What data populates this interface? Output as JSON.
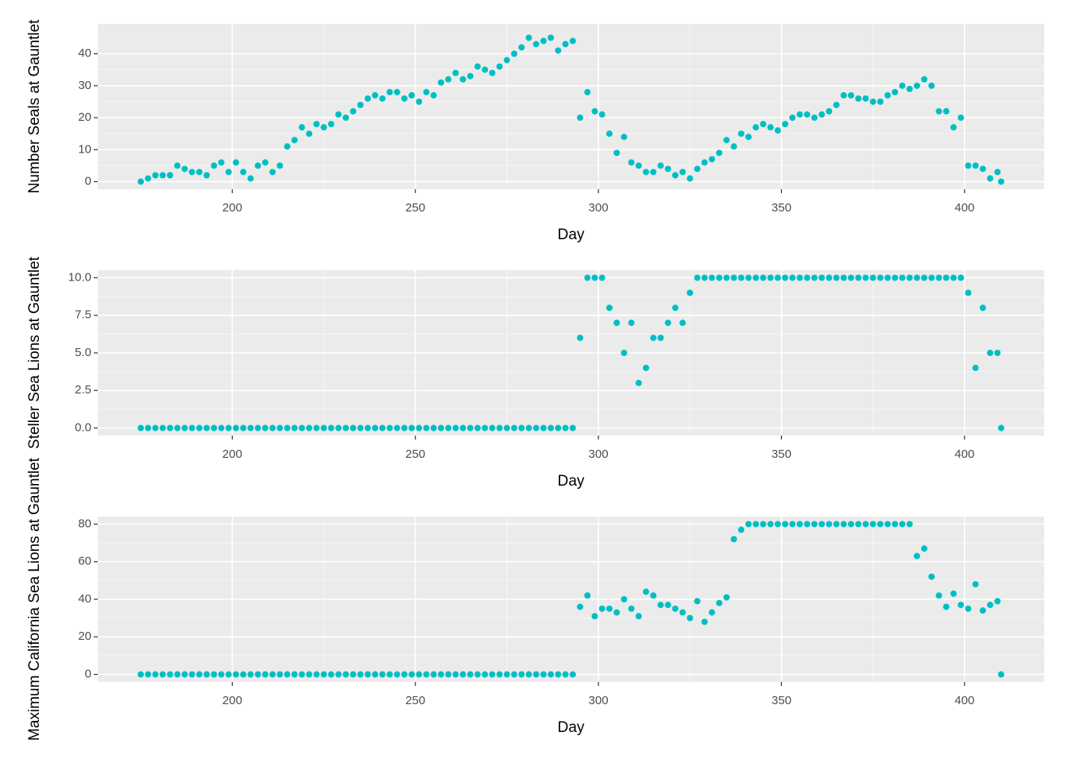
{
  "chart_data": [
    {
      "type": "scatter",
      "x_label": "Day",
      "y_label": "Number Seals at Gauntlet",
      "color": "#00bfc4",
      "grid": true,
      "xlim": [
        163.25,
        421.75
      ],
      "ylim": [
        -2.35,
        49.35
      ],
      "xticks": [
        200,
        250,
        300,
        350,
        400
      ],
      "yticks": [
        0,
        10,
        20,
        30,
        40
      ],
      "x": [
        175,
        177,
        179,
        181,
        183,
        185,
        187,
        189,
        191,
        193,
        195,
        197,
        199,
        201,
        203,
        205,
        207,
        209,
        211,
        213,
        215,
        217,
        219,
        221,
        223,
        225,
        227,
        229,
        231,
        233,
        235,
        237,
        239,
        241,
        243,
        245,
        247,
        249,
        251,
        253,
        255,
        257,
        259,
        261,
        263,
        265,
        267,
        269,
        271,
        273,
        275,
        277,
        279,
        281,
        283,
        285,
        287,
        289,
        291,
        293,
        295,
        297,
        299,
        301,
        303,
        305,
        307,
        309,
        311,
        313,
        315,
        317,
        319,
        321,
        323,
        325,
        327,
        329,
        331,
        333,
        335,
        337,
        339,
        341,
        343,
        345,
        347,
        349,
        351,
        353,
        355,
        357,
        359,
        361,
        363,
        365,
        367,
        369,
        371,
        373,
        375,
        377,
        379,
        381,
        383,
        385,
        387,
        389,
        391,
        393,
        395,
        397,
        399,
        401,
        403,
        405,
        407,
        409,
        410
      ],
      "values": [
        0,
        1,
        2,
        2,
        2,
        5,
        4,
        3,
        3,
        2,
        5,
        6,
        3,
        6,
        3,
        1,
        5,
        6,
        3,
        5,
        11,
        13,
        17,
        15,
        18,
        17,
        18,
        21,
        20,
        22,
        24,
        26,
        27,
        26,
        28,
        28,
        26,
        27,
        25,
        28,
        27,
        31,
        32,
        34,
        32,
        33,
        36,
        35,
        34,
        36,
        38,
        40,
        42,
        45,
        43,
        44,
        45,
        41,
        43,
        44,
        20,
        28,
        22,
        21,
        15,
        9,
        14,
        6,
        5,
        3,
        3,
        5,
        4,
        2,
        3,
        1,
        4,
        6,
        7,
        9,
        13,
        11,
        15,
        14,
        17,
        18,
        17,
        16,
        18,
        20,
        21,
        21,
        20,
        21,
        22,
        24,
        27,
        27,
        26,
        26,
        25,
        25,
        27,
        28,
        30,
        29,
        30,
        32,
        30,
        22,
        22,
        17,
        20,
        5,
        5,
        4,
        1,
        3,
        0
      ]
    },
    {
      "type": "scatter",
      "x_label": "Day",
      "y_label": "Steller Sea Lions at Gauntlet",
      "color": "#00bfc4",
      "grid": true,
      "xlim": [
        163.25,
        421.75
      ],
      "ylim": [
        -0.5,
        10.5
      ],
      "xticks": [
        200,
        250,
        300,
        350,
        400
      ],
      "yticks": [
        {
          "value": 0,
          "label": "0.0"
        },
        {
          "value": 2.5,
          "label": "2.5"
        },
        {
          "value": 5,
          "label": "5.0"
        },
        {
          "value": 7.5,
          "label": "7.5"
        },
        {
          "value": 10,
          "label": "10.0"
        }
      ],
      "x": [
        175,
        177,
        179,
        181,
        183,
        185,
        187,
        189,
        191,
        193,
        195,
        197,
        199,
        201,
        203,
        205,
        207,
        209,
        211,
        213,
        215,
        217,
        219,
        221,
        223,
        225,
        227,
        229,
        231,
        233,
        235,
        237,
        239,
        241,
        243,
        245,
        247,
        249,
        251,
        253,
        255,
        257,
        259,
        261,
        263,
        265,
        267,
        269,
        271,
        273,
        275,
        277,
        279,
        281,
        283,
        285,
        287,
        289,
        291,
        293,
        295,
        297,
        299,
        301,
        303,
        305,
        307,
        309,
        311,
        313,
        315,
        317,
        319,
        321,
        323,
        325,
        327,
        329,
        331,
        333,
        335,
        337,
        339,
        341,
        343,
        345,
        347,
        349,
        351,
        353,
        355,
        357,
        359,
        361,
        363,
        365,
        367,
        369,
        371,
        373,
        375,
        377,
        379,
        381,
        383,
        385,
        387,
        389,
        391,
        393,
        395,
        397,
        399,
        401,
        403,
        405,
        407,
        409,
        410
      ],
      "values": [
        0,
        0,
        0,
        0,
        0,
        0,
        0,
        0,
        0,
        0,
        0,
        0,
        0,
        0,
        0,
        0,
        0,
        0,
        0,
        0,
        0,
        0,
        0,
        0,
        0,
        0,
        0,
        0,
        0,
        0,
        0,
        0,
        0,
        0,
        0,
        0,
        0,
        0,
        0,
        0,
        0,
        0,
        0,
        0,
        0,
        0,
        0,
        0,
        0,
        0,
        0,
        0,
        0,
        0,
        0,
        0,
        0,
        0,
        0,
        0,
        6,
        10,
        10,
        10,
        8,
        7,
        5,
        7,
        3,
        4,
        6,
        6,
        7,
        8,
        7,
        9,
        10,
        10,
        10,
        10,
        10,
        10,
        10,
        10,
        10,
        10,
        10,
        10,
        10,
        10,
        10,
        10,
        10,
        10,
        10,
        10,
        10,
        10,
        10,
        10,
        10,
        10,
        10,
        10,
        10,
        10,
        10,
        10,
        10,
        10,
        10,
        10,
        10,
        9,
        4,
        8,
        5,
        5,
        0
      ]
    },
    {
      "type": "scatter",
      "x_label": "Day",
      "y_label": "Maximum California Sea Lions at Gauntlet",
      "color": "#00bfc4",
      "grid": true,
      "xlim": [
        163.25,
        421.75
      ],
      "ylim": [
        -4,
        84
      ],
      "xticks": [
        200,
        250,
        300,
        350,
        400
      ],
      "yticks": [
        0,
        20,
        40,
        60,
        80
      ],
      "x": [
        175,
        177,
        179,
        181,
        183,
        185,
        187,
        189,
        191,
        193,
        195,
        197,
        199,
        201,
        203,
        205,
        207,
        209,
        211,
        213,
        215,
        217,
        219,
        221,
        223,
        225,
        227,
        229,
        231,
        233,
        235,
        237,
        239,
        241,
        243,
        245,
        247,
        249,
        251,
        253,
        255,
        257,
        259,
        261,
        263,
        265,
        267,
        269,
        271,
        273,
        275,
        277,
        279,
        281,
        283,
        285,
        287,
        289,
        291,
        293,
        295,
        297,
        299,
        301,
        303,
        305,
        307,
        309,
        311,
        313,
        315,
        317,
        319,
        321,
        323,
        325,
        327,
        329,
        331,
        333,
        335,
        337,
        339,
        341,
        343,
        345,
        347,
        349,
        351,
        353,
        355,
        357,
        359,
        361,
        363,
        365,
        367,
        369,
        371,
        373,
        375,
        377,
        379,
        381,
        383,
        385,
        387,
        389,
        391,
        393,
        395,
        397,
        399,
        401,
        403,
        405,
        407,
        409,
        410
      ],
      "values": [
        0,
        0,
        0,
        0,
        0,
        0,
        0,
        0,
        0,
        0,
        0,
        0,
        0,
        0,
        0,
        0,
        0,
        0,
        0,
        0,
        0,
        0,
        0,
        0,
        0,
        0,
        0,
        0,
        0,
        0,
        0,
        0,
        0,
        0,
        0,
        0,
        0,
        0,
        0,
        0,
        0,
        0,
        0,
        0,
        0,
        0,
        0,
        0,
        0,
        0,
        0,
        0,
        0,
        0,
        0,
        0,
        0,
        0,
        0,
        0,
        36,
        42,
        31,
        35,
        35,
        33,
        40,
        35,
        31,
        44,
        42,
        37,
        37,
        35,
        33,
        30,
        39,
        28,
        33,
        38,
        41,
        72,
        77,
        80,
        80,
        80,
        80,
        80,
        80,
        80,
        80,
        80,
        80,
        80,
        80,
        80,
        80,
        80,
        80,
        80,
        80,
        80,
        80,
        80,
        80,
        80,
        63,
        67,
        52,
        42,
        36,
        43,
        37,
        35,
        48,
        34,
        37,
        39,
        0
      ]
    }
  ]
}
